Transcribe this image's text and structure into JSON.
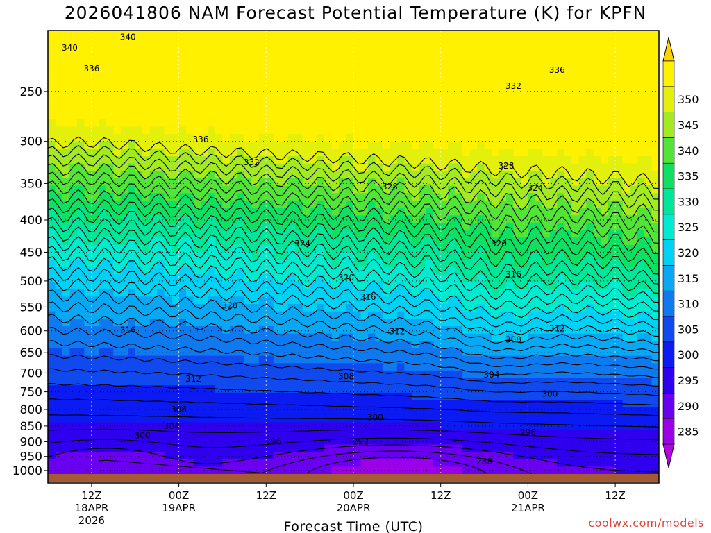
{
  "title": "2026041806 NAM Forecast Potential Temperature (K) for KPFN",
  "credit": "coolwx.com/models",
  "chart_data": {
    "type": "heatmap",
    "title": "2026041806 NAM Forecast Potential Temperature (K) for KPFN",
    "xlabel": "Forecast Time (UTC)",
    "ylabel": "",
    "y_ticks": [
      250,
      300,
      350,
      400,
      450,
      500,
      550,
      600,
      650,
      700,
      750,
      800,
      850,
      900,
      950,
      1000
    ],
    "y_range": [
      200,
      1013
    ],
    "x_range": [
      6,
      90
    ],
    "x_ticks": [
      {
        "hour": 12,
        "label": "12Z",
        "date": "18APR",
        "year": "2026"
      },
      {
        "hour": 24,
        "label": "00Z",
        "date": "19APR",
        "year": ""
      },
      {
        "hour": 36,
        "label": "12Z",
        "date": "",
        "year": ""
      },
      {
        "hour": 48,
        "label": "00Z",
        "date": "20APR",
        "year": ""
      },
      {
        "hour": 60,
        "label": "12Z",
        "date": "",
        "year": ""
      },
      {
        "hour": 72,
        "label": "00Z",
        "date": "21APR",
        "year": ""
      },
      {
        "hour": 84,
        "label": "12Z",
        "date": "",
        "year": ""
      }
    ],
    "colorbar": {
      "levels": [
        285,
        290,
        295,
        300,
        305,
        310,
        315,
        320,
        325,
        330,
        335,
        340,
        345,
        350
      ],
      "colors": [
        "#9b00e8",
        "#6a00f0",
        "#2e00ee",
        "#0b1bf2",
        "#1049ee",
        "#0f7af0",
        "#08a8f4",
        "#00d2f6",
        "#00ebcf",
        "#00e79a",
        "#10e062",
        "#52e436",
        "#a3ea20",
        "#e2f00c",
        "#fff100"
      ],
      "min_color": "#b600e8",
      "max_color": "#ffd200"
    },
    "contour_interval": 2,
    "contour_labels": [
      {
        "value": 340,
        "hour": 17,
        "pressure": 205
      },
      {
        "value": 340,
        "hour": 9,
        "pressure": 213
      },
      {
        "value": 336,
        "hour": 12,
        "pressure": 230
      },
      {
        "value": 336,
        "hour": 76,
        "pressure": 231
      },
      {
        "value": 336,
        "hour": 27,
        "pressure": 298
      },
      {
        "value": 332,
        "hour": 70,
        "pressure": 245
      },
      {
        "value": 332,
        "hour": 34,
        "pressure": 324
      },
      {
        "value": 328,
        "hour": 69,
        "pressure": 328
      },
      {
        "value": 328,
        "hour": 53,
        "pressure": 354
      },
      {
        "value": 324,
        "hour": 73,
        "pressure": 356
      },
      {
        "value": 324,
        "hour": 41,
        "pressure": 436
      },
      {
        "value": 320,
        "hour": 68,
        "pressure": 436
      },
      {
        "value": 320,
        "hour": 47,
        "pressure": 494
      },
      {
        "value": 320,
        "hour": 31,
        "pressure": 547
      },
      {
        "value": 316,
        "hour": 70,
        "pressure": 488
      },
      {
        "value": 316,
        "hour": 50,
        "pressure": 530
      },
      {
        "value": 316,
        "hour": 17,
        "pressure": 598
      },
      {
        "value": 312,
        "hour": 54,
        "pressure": 601
      },
      {
        "value": 312,
        "hour": 76,
        "pressure": 595
      },
      {
        "value": 312,
        "hour": 26,
        "pressure": 715
      },
      {
        "value": 308,
        "hour": 70,
        "pressure": 620
      },
      {
        "value": 308,
        "hour": 47,
        "pressure": 709
      },
      {
        "value": 308,
        "hour": 24,
        "pressure": 800
      },
      {
        "value": 304,
        "hour": 67,
        "pressure": 705
      },
      {
        "value": 304,
        "hour": 23,
        "pressure": 850
      },
      {
        "value": 300,
        "hour": 75,
        "pressure": 756
      },
      {
        "value": 300,
        "hour": 51,
        "pressure": 824
      },
      {
        "value": 300,
        "hour": 19,
        "pressure": 880
      },
      {
        "value": 296,
        "hour": 72,
        "pressure": 870
      },
      {
        "value": 296,
        "hour": 37,
        "pressure": 900
      },
      {
        "value": 292,
        "hour": 49,
        "pressure": 900
      },
      {
        "value": 288,
        "hour": 66,
        "pressure": 968
      }
    ]
  }
}
